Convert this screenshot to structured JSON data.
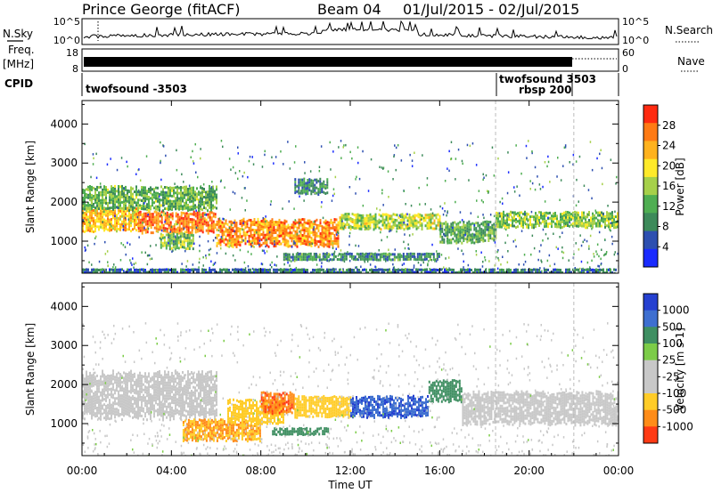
{
  "header": {
    "station": "Prince George (fitACF)",
    "beam": "Beam 04",
    "date_range": "01/Jul/2015 - 02/Jul/2015"
  },
  "left_labels": {
    "nsky": "N.Sky",
    "freq": "Freq.",
    "freq_unit": "[MHz]",
    "cpid": "CPID"
  },
  "right_labels": {
    "nsearch": "N.Search",
    "nave": "Nave"
  },
  "noise_panel": {
    "left_ticks": [
      "10^5",
      "10^0"
    ],
    "right_ticks": [
      "10^5",
      "10^0"
    ]
  },
  "freq_panel": {
    "left_ticks": [
      "18",
      "8"
    ],
    "right_ticks": [
      "60",
      "0"
    ]
  },
  "cpid_panel": {
    "mode1": "twofsound -3503",
    "mode2_line1": "twofsound 3503",
    "mode2_line2": "rbsp 200",
    "mode2_start_hour": 18.5,
    "mode2_end_hour": 22
  },
  "colors": {
    "power_scale": [
      "#1a2bff",
      "#2d4fb0",
      "#3d8a5a",
      "#4fae52",
      "#a6d04a",
      "#ffea2a",
      "#ffb21e",
      "#ff7a14",
      "#ff2a10"
    ],
    "velocity_scale": [
      "#2540d0",
      "#3e6fd0",
      "#3f8f62",
      "#7ccc48",
      "#c8c8c8",
      "#c8c8c8",
      "#ffcc28",
      "#ff8c18",
      "#ff3a14"
    ]
  },
  "chart_data": [
    {
      "type": "heatmap",
      "title": "",
      "xlabel": "Time UT",
      "ylabel": "Slant Range [km]",
      "xticks": [
        "00:00",
        "04:00",
        "08:00",
        "12:00",
        "16:00",
        "20:00",
        "00:00"
      ],
      "yticks": [
        "1000",
        "2000",
        "3000",
        "4000"
      ],
      "xlim": [
        0,
        24
      ],
      "ylim": [
        180,
        4600
      ],
      "colorbar_label": "Power [dB]",
      "colorbar_ticks": [
        "28",
        "24",
        "20",
        "16",
        "12",
        "8",
        "4"
      ],
      "colorbar_range": [
        0,
        32
      ],
      "bands": [
        {
          "t": [
            0,
            2.5
          ],
          "r": [
            1300,
            1850
          ],
          "value": 22
        },
        {
          "t": [
            2.5,
            6
          ],
          "r": [
            1250,
            1750
          ],
          "value": 26
        },
        {
          "t": [
            6,
            11.5
          ],
          "r": [
            900,
            1550
          ],
          "value": 25
        },
        {
          "t": [
            3.5,
            5
          ],
          "r": [
            850,
            1200
          ],
          "value": 14
        },
        {
          "t": [
            11.5,
            16
          ],
          "r": [
            1300,
            1700
          ],
          "value": 17
        },
        {
          "t": [
            16,
            18.5
          ],
          "r": [
            1000,
            1500
          ],
          "value": 12
        },
        {
          "t": [
            18.5,
            24
          ],
          "r": [
            1350,
            1750
          ],
          "value": 15
        },
        {
          "t": [
            0,
            6
          ],
          "r": [
            1850,
            2400
          ],
          "value": 13
        },
        {
          "t": [
            9.5,
            11
          ],
          "r": [
            2200,
            2600
          ],
          "value": 9
        },
        {
          "t": [
            9,
            16
          ],
          "r": [
            550,
            700
          ],
          "value": 10
        },
        {
          "t": [
            0,
            24
          ],
          "r": [
            200,
            300
          ],
          "value": 7
        }
      ]
    },
    {
      "type": "heatmap",
      "title": "",
      "xlabel": "Time UT",
      "ylabel": "Slant Range [km]",
      "xticks": [
        "00:00",
        "04:00",
        "08:00",
        "12:00",
        "16:00",
        "20:00",
        "00:00"
      ],
      "yticks": [
        "1000",
        "2000",
        "3000",
        "4000"
      ],
      "xlim": [
        0,
        24
      ],
      "ylim": [
        180,
        4600
      ],
      "colorbar_label": "Velocity [m s-1]",
      "colorbar_ticks": [
        "1000",
        "500",
        "100",
        "25",
        "-25",
        "-100",
        "-500",
        "-1000"
      ],
      "bands": [
        {
          "t": [
            0,
            6
          ],
          "r": [
            1200,
            2300
          ],
          "value": 0
        },
        {
          "t": [
            4.5,
            8
          ],
          "r": [
            600,
            1100
          ],
          "value": -300
        },
        {
          "t": [
            6.5,
            9
          ],
          "r": [
            1000,
            1600
          ],
          "value": -150
        },
        {
          "t": [
            8,
            9.5
          ],
          "r": [
            1300,
            1800
          ],
          "value": -600
        },
        {
          "t": [
            9.5,
            12
          ],
          "r": [
            1200,
            1700
          ],
          "value": -200
        },
        {
          "t": [
            12,
            15.5
          ],
          "r": [
            1200,
            1700
          ],
          "value": 600
        },
        {
          "t": [
            8.5,
            11
          ],
          "r": [
            700,
            900
          ],
          "value": 150
        },
        {
          "t": [
            15.5,
            17
          ],
          "r": [
            1600,
            2100
          ],
          "value": 200
        },
        {
          "t": [
            17,
            24
          ],
          "r": [
            1000,
            1800
          ],
          "value": 0
        }
      ]
    }
  ]
}
